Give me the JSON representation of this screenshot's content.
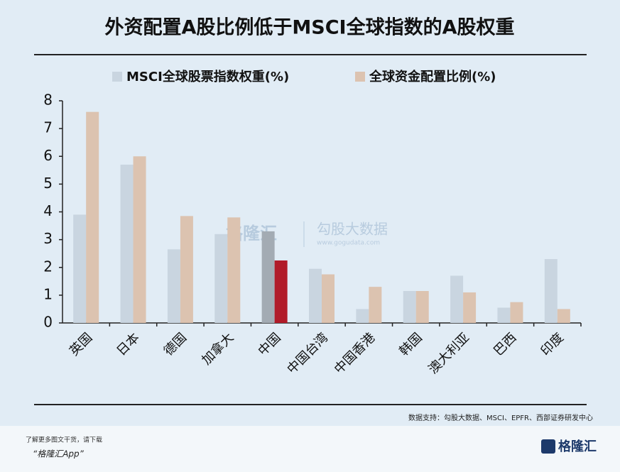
{
  "chart_data": {
    "type": "bar",
    "title": "外资配置A股比例低于MSCI全球指数的A股权重",
    "categories": [
      "英国",
      "日本",
      "德国",
      "加拿大",
      "中国",
      "中国台湾",
      "中国香港",
      "韩国",
      "澳大利亚",
      "巴西",
      "印度"
    ],
    "series": [
      {
        "name": "MSCI全球股票指数权重(%)",
        "color": "#c9d5e0",
        "colors": [
          "#c9d5e0",
          "#c9d5e0",
          "#c9d5e0",
          "#c9d5e0",
          "#a3abb3",
          "#c9d5e0",
          "#c9d5e0",
          "#c9d5e0",
          "#c9d5e0",
          "#c9d5e0",
          "#c9d5e0"
        ],
        "values": [
          3.9,
          5.7,
          2.65,
          3.2,
          3.3,
          1.95,
          0.5,
          1.15,
          1.7,
          0.55,
          2.3
        ]
      },
      {
        "name": "全球资金配置比例(%)",
        "color": "#dcc3b0",
        "colors": [
          "#dcc3b0",
          "#dcc3b0",
          "#dcc3b0",
          "#dcc3b0",
          "#b11b29",
          "#dcc3b0",
          "#dcc3b0",
          "#dcc3b0",
          "#dcc3b0",
          "#dcc3b0",
          "#dcc3b0"
        ],
        "values": [
          7.6,
          6.0,
          3.85,
          3.8,
          2.25,
          1.75,
          1.3,
          1.15,
          1.1,
          0.75,
          0.5
        ]
      }
    ],
    "ylim": [
      0,
      8
    ],
    "yticks": [
      0,
      1,
      2,
      3,
      4,
      5,
      6,
      7,
      8
    ],
    "grid": false,
    "source": "数据支持：勾股大数据、MSCI、EPFR、西部证券研发中心",
    "watermark": {
      "brand": "格隆汇",
      "name": "勾股大数据",
      "url": "www.gogudata.com"
    },
    "footer": {
      "note": "了解更多图文干货，请下载",
      "app": "“格隆汇App”",
      "logo": "格隆汇"
    }
  }
}
